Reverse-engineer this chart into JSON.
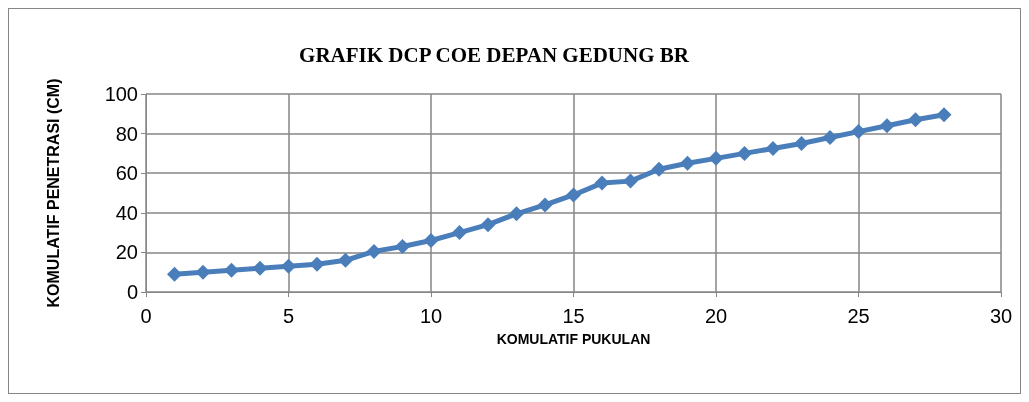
{
  "chart_data": {
    "type": "line",
    "title": "GRAFIK DCP COE DEPAN GEDUNG BR",
    "xlabel": "KOMULATIF PUKULAN",
    "ylabel": "KOMULATIF PENETRASI (CM)",
    "x": [
      1,
      2,
      3,
      4,
      5,
      6,
      7,
      8,
      9,
      10,
      11,
      12,
      13,
      14,
      15,
      16,
      17,
      18,
      19,
      20,
      21,
      22,
      23,
      24,
      25,
      26,
      27,
      28
    ],
    "series": [
      {
        "color": "#4a7ebb",
        "values": [
          9,
          10,
          11,
          12,
          13,
          14,
          16,
          20.5,
          23,
          26,
          30,
          34,
          39.5,
          44,
          49,
          55,
          56,
          62,
          65,
          67.5,
          70,
          72.5,
          75,
          78,
          81,
          84,
          87,
          89.5
        ]
      }
    ],
    "xlim": [
      0,
      30
    ],
    "xticks": [
      0,
      5,
      10,
      15,
      20,
      25,
      30
    ],
    "ylim": [
      0,
      100
    ],
    "yticks": [
      0,
      20,
      40,
      60,
      80,
      100
    ],
    "grid": true,
    "marker": "diamond",
    "line_style": "solid"
  }
}
